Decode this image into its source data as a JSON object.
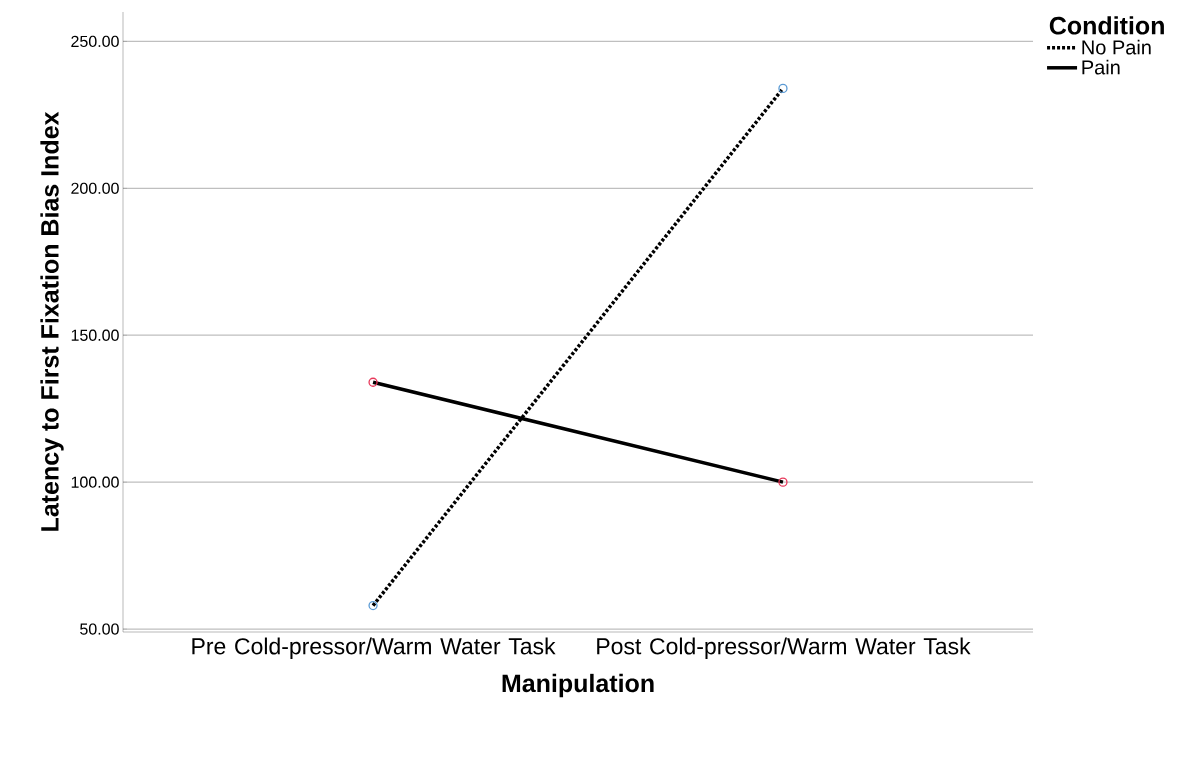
{
  "chart_data": {
    "type": "line",
    "xlabel": "Manipulation",
    "ylabel": "Latency to First Fixation Bias Index",
    "legend_title": "Condition",
    "categories": [
      "Pre Cold-pressor/Warm Water Task",
      "Post Cold-pressor/Warm Water Task"
    ],
    "series": [
      {
        "name": "No Pain",
        "color": "#000000",
        "colors": [
          "#5b9bd5",
          "#5b9bd5"
        ],
        "line_style": "dotted",
        "values": [
          58,
          234
        ]
      },
      {
        "name": "Pain",
        "color": "#000000",
        "colors": [
          "#e8385a",
          "#e8385a"
        ],
        "line_style": "solid",
        "values": [
          134,
          100
        ]
      }
    ],
    "ylim": [
      49,
      260
    ],
    "yticks": [
      {
        "value": 50,
        "label": "50.00"
      },
      {
        "value": 100,
        "label": "100.00"
      },
      {
        "value": 150,
        "label": "150.00"
      },
      {
        "value": 200,
        "label": "200.00"
      },
      {
        "value": 250,
        "label": "250.00"
      }
    ],
    "grid": "y",
    "legend": "top right",
    "marker": "circle"
  }
}
